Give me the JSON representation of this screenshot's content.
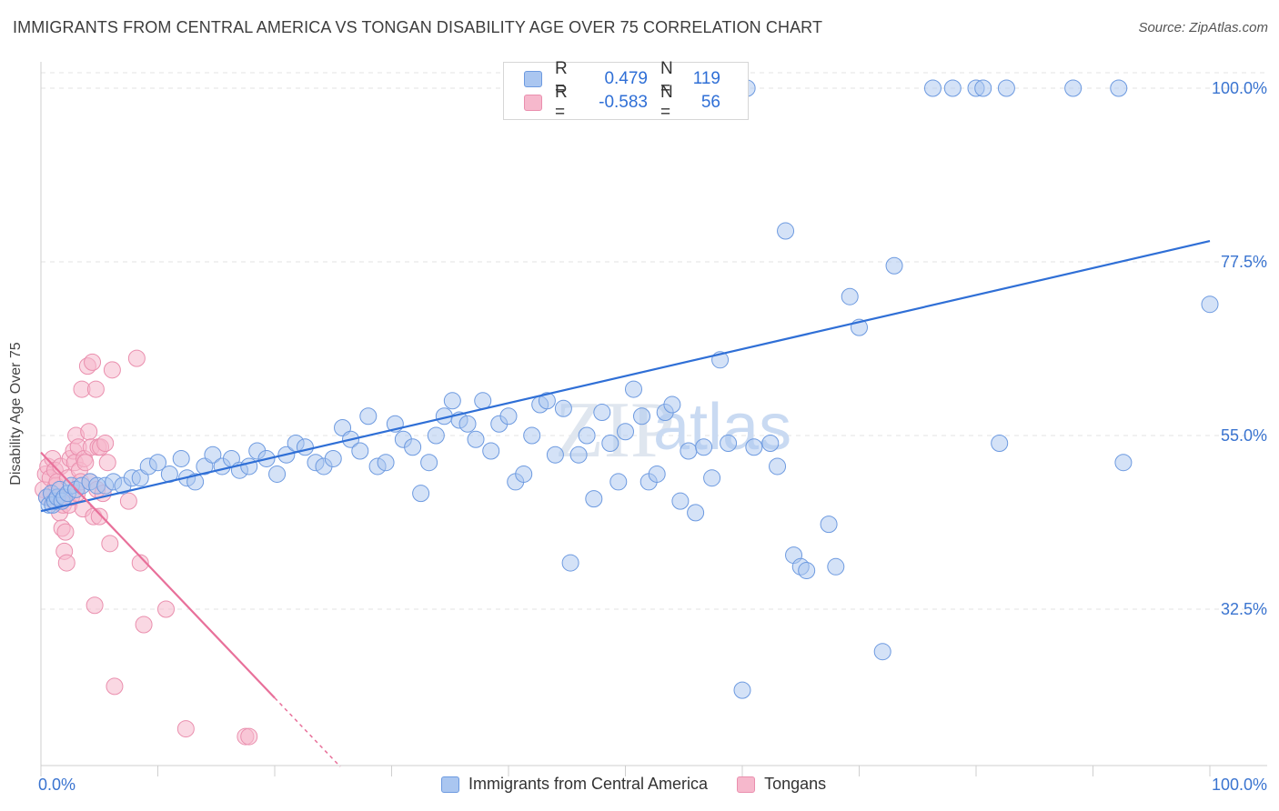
{
  "title": "IMMIGRANTS FROM CENTRAL AMERICA VS TONGAN DISABILITY AGE OVER 75 CORRELATION CHART",
  "source": "Source: ZipAtlas.com",
  "watermark": {
    "zip": "ZIP",
    "atlas": "atlas"
  },
  "colors": {
    "blue": "#2f6fd6",
    "pink": "#e8709a",
    "blue_fill": "#aac6f0",
    "pink_fill": "#f6b8cc",
    "tick_label": "#3a74d0"
  },
  "legend": {
    "series": [
      {
        "r_label": "R =",
        "r_value": "0.479",
        "n_label": "N =",
        "n_value": "119"
      },
      {
        "r_label": "R =",
        "r_value": "-0.583",
        "n_label": "N =",
        "n_value": "56"
      }
    ]
  },
  "bottom_legend": [
    "Immigrants from Central America",
    "Tongans"
  ],
  "chart_data": {
    "type": "scatter",
    "ylabel": "Disability Age Over 75",
    "xlabel": "",
    "xlim": [
      0,
      100
    ],
    "ylim": [
      12,
      102
    ],
    "x_tick_labels": [
      "0.0%",
      "100.0%"
    ],
    "y_ticks": [
      {
        "value": 100,
        "label": "100.0%"
      },
      {
        "value": 77.5,
        "label": "77.5%"
      },
      {
        "value": 55,
        "label": "55.0%"
      },
      {
        "value": 32.5,
        "label": "32.5%"
      }
    ],
    "grid": true,
    "series": [
      {
        "name": "Immigrants from Central America",
        "color": "#2f6fd6",
        "trend": {
          "x": [
            0,
            100
          ],
          "y": [
            45.2,
            80.2
          ]
        },
        "points": [
          [
            0.5,
            47
          ],
          [
            0.7,
            46
          ],
          [
            0.9,
            47.5
          ],
          [
            1.0,
            46
          ],
          [
            1.2,
            46.5
          ],
          [
            1.4,
            47
          ],
          [
            1.6,
            48
          ],
          [
            1.8,
            46.5
          ],
          [
            2.0,
            47
          ],
          [
            2.3,
            47.5
          ],
          [
            2.6,
            48.5
          ],
          [
            3.0,
            48
          ],
          [
            3.5,
            48.5
          ],
          [
            4.2,
            49
          ],
          [
            4.8,
            48.5
          ],
          [
            5.5,
            48.5
          ],
          [
            6.2,
            49
          ],
          [
            7.0,
            48.5
          ],
          [
            7.8,
            49.5
          ],
          [
            8.5,
            49.5
          ],
          [
            9.2,
            51
          ],
          [
            10.0,
            51.5
          ],
          [
            11.0,
            50
          ],
          [
            12.0,
            52
          ],
          [
            12.5,
            49.5
          ],
          [
            13.2,
            49
          ],
          [
            14.0,
            51
          ],
          [
            14.7,
            52.5
          ],
          [
            15.5,
            51
          ],
          [
            16.3,
            52
          ],
          [
            17.0,
            50.5
          ],
          [
            17.8,
            51
          ],
          [
            18.5,
            53
          ],
          [
            19.3,
            52
          ],
          [
            20.2,
            50
          ],
          [
            21.0,
            52.5
          ],
          [
            21.8,
            54
          ],
          [
            22.6,
            53.5
          ],
          [
            23.5,
            51.5
          ],
          [
            24.2,
            51
          ],
          [
            25.0,
            52
          ],
          [
            25.8,
            56
          ],
          [
            26.5,
            54.5
          ],
          [
            27.3,
            53
          ],
          [
            28.0,
            57.5
          ],
          [
            28.8,
            51
          ],
          [
            29.5,
            51.5
          ],
          [
            30.3,
            56.5
          ],
          [
            31.0,
            54.5
          ],
          [
            31.8,
            53.5
          ],
          [
            32.5,
            47.5
          ],
          [
            33.2,
            51.5
          ],
          [
            33.8,
            55
          ],
          [
            34.5,
            57.5
          ],
          [
            35.2,
            59.5
          ],
          [
            35.8,
            57
          ],
          [
            36.5,
            56.5
          ],
          [
            37.2,
            54.5
          ],
          [
            37.8,
            59.5
          ],
          [
            38.5,
            53
          ],
          [
            39.2,
            56.5
          ],
          [
            40.0,
            57.5
          ],
          [
            40.6,
            49
          ],
          [
            41.3,
            50
          ],
          [
            42.0,
            55
          ],
          [
            42.7,
            59
          ],
          [
            43.3,
            59.5
          ],
          [
            44.0,
            52.5
          ],
          [
            44.7,
            58.5
          ],
          [
            45.3,
            38.5
          ],
          [
            46.0,
            52.5
          ],
          [
            46.7,
            55
          ],
          [
            47.3,
            46.8
          ],
          [
            48.0,
            58
          ],
          [
            48.7,
            54
          ],
          [
            49.4,
            49
          ],
          [
            50.0,
            55.5
          ],
          [
            50.7,
            61
          ],
          [
            51.4,
            57.5
          ],
          [
            52.0,
            49
          ],
          [
            52.7,
            50
          ],
          [
            53.4,
            58
          ],
          [
            54.0,
            59
          ],
          [
            54.7,
            46.5
          ],
          [
            55.4,
            53
          ],
          [
            56.0,
            45
          ],
          [
            56.7,
            53.5
          ],
          [
            57.4,
            49.5
          ],
          [
            58.1,
            64.8
          ],
          [
            58.8,
            54
          ],
          [
            60.0,
            22
          ],
          [
            61.0,
            53.5
          ],
          [
            62.4,
            54
          ],
          [
            63.0,
            51
          ],
          [
            63.7,
            81.5
          ],
          [
            64.4,
            39.5
          ],
          [
            65.0,
            38
          ],
          [
            65.5,
            37.5
          ],
          [
            67.4,
            43.5
          ],
          [
            68.0,
            38
          ],
          [
            69.2,
            73
          ],
          [
            70.0,
            69
          ],
          [
            72.0,
            27
          ],
          [
            73.0,
            77
          ],
          [
            76.3,
            100
          ],
          [
            78.0,
            100
          ],
          [
            80.0,
            100
          ],
          [
            80.6,
            100
          ],
          [
            82.6,
            100
          ],
          [
            82.0,
            54
          ],
          [
            88.3,
            100
          ],
          [
            92.2,
            100
          ],
          [
            92.6,
            51.5
          ],
          [
            100,
            72
          ],
          [
            60.4,
            100
          ]
        ]
      },
      {
        "name": "Tongans",
        "color": "#e8709a",
        "trend": {
          "x": [
            0,
            20
          ],
          "y": [
            52.8,
            21.0
          ]
        },
        "trend_dashed": {
          "x": [
            20,
            25.6
          ],
          "y": [
            21.0,
            12.1
          ]
        },
        "points": [
          [
            0.2,
            48
          ],
          [
            0.4,
            50
          ],
          [
            0.5,
            47
          ],
          [
            0.6,
            51
          ],
          [
            0.8,
            49.5
          ],
          [
            0.9,
            47.5
          ],
          [
            1.0,
            52
          ],
          [
            1.1,
            46.5
          ],
          [
            1.2,
            50.5
          ],
          [
            1.3,
            48.5
          ],
          [
            1.4,
            49
          ],
          [
            1.5,
            47
          ],
          [
            1.6,
            45
          ],
          [
            1.7,
            51
          ],
          [
            1.8,
            43
          ],
          [
            1.9,
            46
          ],
          [
            2.0,
            40
          ],
          [
            2.1,
            42.5
          ],
          [
            2.2,
            38.5
          ],
          [
            2.3,
            49.5
          ],
          [
            2.4,
            46
          ],
          [
            2.5,
            52
          ],
          [
            2.6,
            47
          ],
          [
            2.8,
            53
          ],
          [
            2.9,
            51.5
          ],
          [
            3.0,
            55
          ],
          [
            3.1,
            47.5
          ],
          [
            3.2,
            53.5
          ],
          [
            3.3,
            50.5
          ],
          [
            3.4,
            49
          ],
          [
            3.5,
            61
          ],
          [
            3.6,
            45.5
          ],
          [
            3.7,
            52
          ],
          [
            3.8,
            51.5
          ],
          [
            4.0,
            64
          ],
          [
            4.1,
            55.5
          ],
          [
            4.2,
            49
          ],
          [
            4.3,
            53.5
          ],
          [
            4.4,
            64.5
          ],
          [
            4.5,
            44.5
          ],
          [
            4.6,
            33
          ],
          [
            4.7,
            61
          ],
          [
            4.8,
            48
          ],
          [
            4.9,
            53.5
          ],
          [
            5.0,
            44.5
          ],
          [
            5.1,
            53.5
          ],
          [
            5.3,
            47.5
          ],
          [
            5.5,
            54
          ],
          [
            5.7,
            51.5
          ],
          [
            5.9,
            41
          ],
          [
            6.1,
            63.5
          ],
          [
            6.3,
            22.5
          ],
          [
            7.5,
            46.5
          ],
          [
            8.2,
            65
          ],
          [
            8.5,
            38.5
          ],
          [
            8.8,
            30.5
          ],
          [
            10.7,
            32.5
          ],
          [
            12.4,
            17
          ],
          [
            17.5,
            16
          ],
          [
            17.8,
            16
          ]
        ]
      }
    ]
  }
}
